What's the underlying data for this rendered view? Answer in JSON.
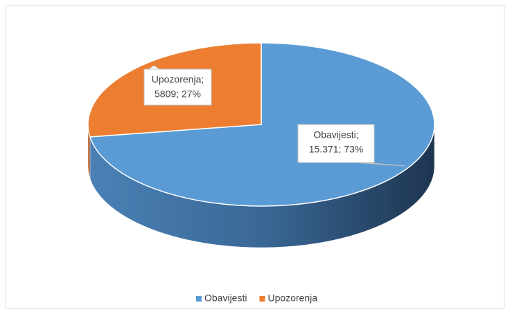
{
  "chart_data": {
    "type": "pie",
    "categories": [
      "Obavijesti",
      "Upozorenja"
    ],
    "values": [
      15371,
      5809
    ],
    "value_labels": [
      "15.371; 73%",
      "5809; 27%"
    ],
    "label_names": [
      "Obavijesti;",
      "Upozorenja;"
    ],
    "colors": [
      "#5b9bd5",
      "#ed7d31"
    ],
    "legend": "bottom"
  }
}
